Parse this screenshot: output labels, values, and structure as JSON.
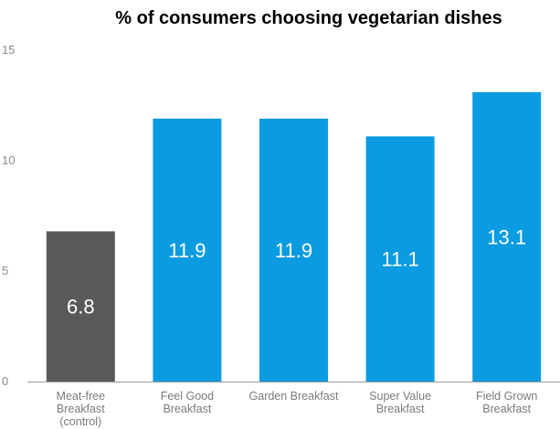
{
  "chart_data": {
    "type": "bar",
    "title": "% of consumers choosing vegetarian dishes",
    "xlabel": "",
    "ylabel": "",
    "ylim": [
      0,
      15
    ],
    "yticks": [
      {
        "value": 0,
        "label": "0"
      },
      {
        "value": 5,
        "label": "5"
      },
      {
        "value": 10,
        "label": "10"
      },
      {
        "value": 15,
        "label": "15"
      }
    ],
    "grid": false,
    "legend": "none",
    "categories": [
      [
        "Meat-free",
        "Breakfast",
        "(control)"
      ],
      [
        "Feel Good",
        "Breakfast"
      ],
      [
        "Garden Breakfast"
      ],
      [
        "Super Value",
        "Breakfast"
      ],
      [
        "Field Grown",
        "Breakfast"
      ]
    ],
    "values": [
      6.8,
      11.9,
      11.9,
      11.1,
      13.1
    ],
    "data_labels": [
      "6.8",
      "11.9",
      "11.9",
      "11.1",
      "13.1"
    ],
    "colors": [
      "#595959",
      "#0b9be0",
      "#0b9be0",
      "#0b9be0",
      "#0b9be0"
    ],
    "axis_color": "#999999"
  }
}
